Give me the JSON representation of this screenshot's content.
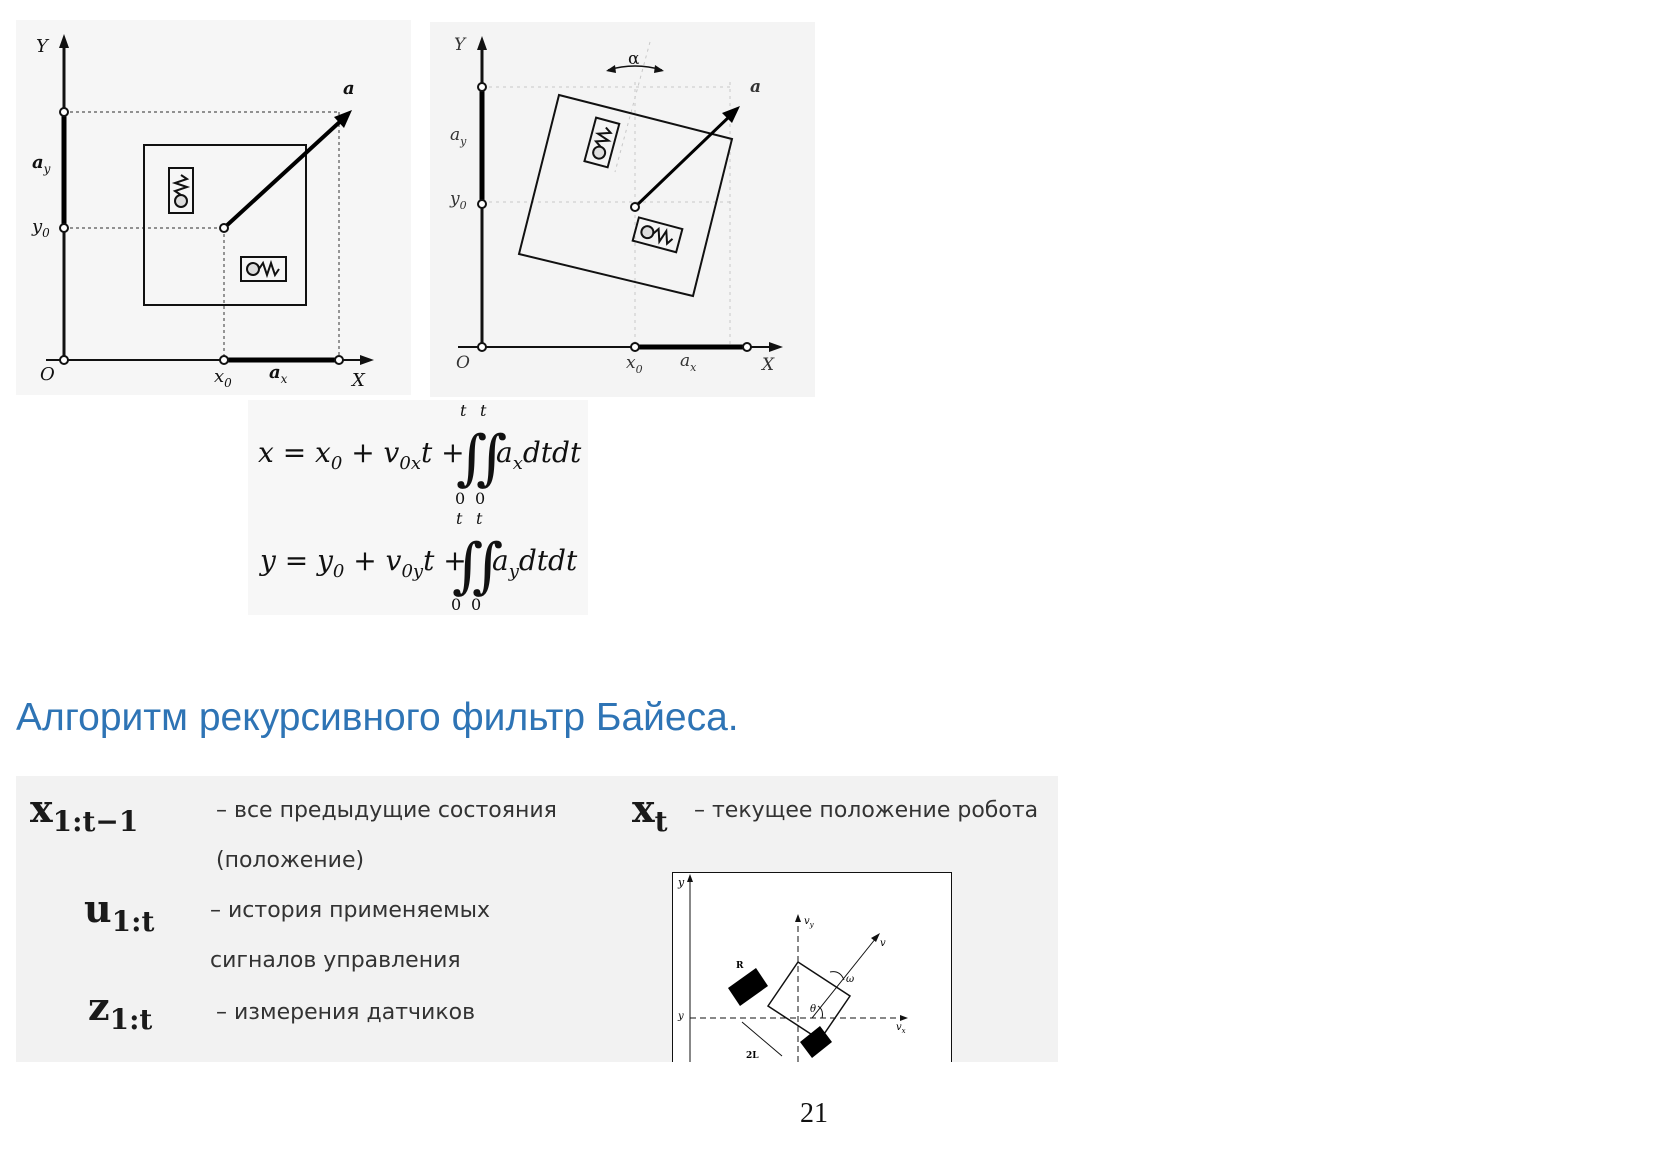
{
  "figure1": {
    "y_axis": "Y",
    "x_axis": "X",
    "origin": "O",
    "ay": "a",
    "ay_sub": "y",
    "y0": "y",
    "y0_sub": "0",
    "x0": "x",
    "x0_sub": "0",
    "ax": "a",
    "ax_sub": "x",
    "vector": "a"
  },
  "figure2": {
    "y_axis": "Y",
    "x_axis": "X",
    "origin": "O",
    "alpha": "α",
    "ay": "a",
    "ay_sub": "y",
    "y0": "y",
    "y0_sub": "0",
    "x0": "x",
    "x0_sub": "0",
    "ax": "a",
    "ax_sub": "x",
    "vector": "a"
  },
  "equations": {
    "eq1": {
      "lhs": "x = x",
      "lhs_sub": "0",
      "plus1": " + v",
      "v_sub": "0x",
      "t": "t +",
      "integrand": "a",
      "integrand_sub": "x",
      "tail": "dtdt",
      "upper": "t",
      "lower": "0"
    },
    "eq2": {
      "lhs": "y = y",
      "lhs_sub": "0",
      "plus1": " + v",
      "v_sub": "0y",
      "t": "t +",
      "integrand": "a",
      "integrand_sub": "y",
      "tail": "dtdt",
      "upper": "t",
      "lower": "0"
    }
  },
  "heading": "Алгоритм рекурсивного фильтр Байеса.",
  "definitions": {
    "x_hist": {
      "sym": "x",
      "sub": "1:t−1",
      "desc1": "– все предыдущие состояния",
      "desc2": "(положение)"
    },
    "u_hist": {
      "sym": "u",
      "sub": "1:t",
      "desc1": "– история применяемых",
      "desc2": "сигналов управления"
    },
    "z_hist": {
      "sym": "z",
      "sub": "1:t",
      "desc1": "– измерения датчиков"
    },
    "x_t": {
      "sym": "x",
      "sub": "t",
      "desc1": "– текущее положение робота"
    }
  },
  "robot_diagram": {
    "y_label": "y",
    "vy": "v",
    "vy_sub": "y",
    "v": "v",
    "omega": "ω",
    "R": "R",
    "theta": "θ",
    "vx": "v",
    "vx_sub": "x",
    "two_L": "2L"
  },
  "page_number": "21"
}
